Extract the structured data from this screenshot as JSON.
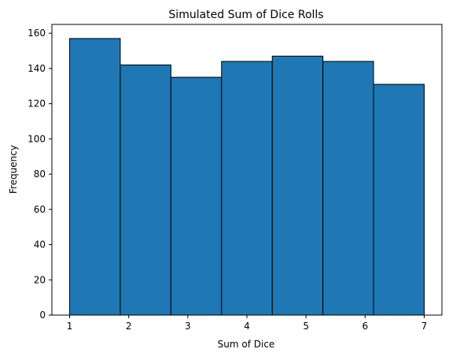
{
  "chart_data": {
    "type": "histogram",
    "title": "Simulated Sum of Dice Rolls",
    "xlabel": "Sum of Dice",
    "ylabel": "Frequency",
    "bin_edges": [
      1,
      1.857,
      2.714,
      3.571,
      4.429,
      5.286,
      6.143,
      7
    ],
    "values": [
      157,
      142,
      135,
      144,
      147,
      144,
      131
    ],
    "xlim": [
      0.7,
      7.3
    ],
    "ylim": [
      0,
      165
    ],
    "xticks": [
      1,
      2,
      3,
      4,
      5,
      6,
      7
    ],
    "yticks": [
      0,
      20,
      40,
      60,
      80,
      100,
      120,
      140,
      160
    ],
    "grid": false,
    "legend": "none",
    "bar_color": "#1f77b4",
    "edge_color": "#000000"
  }
}
